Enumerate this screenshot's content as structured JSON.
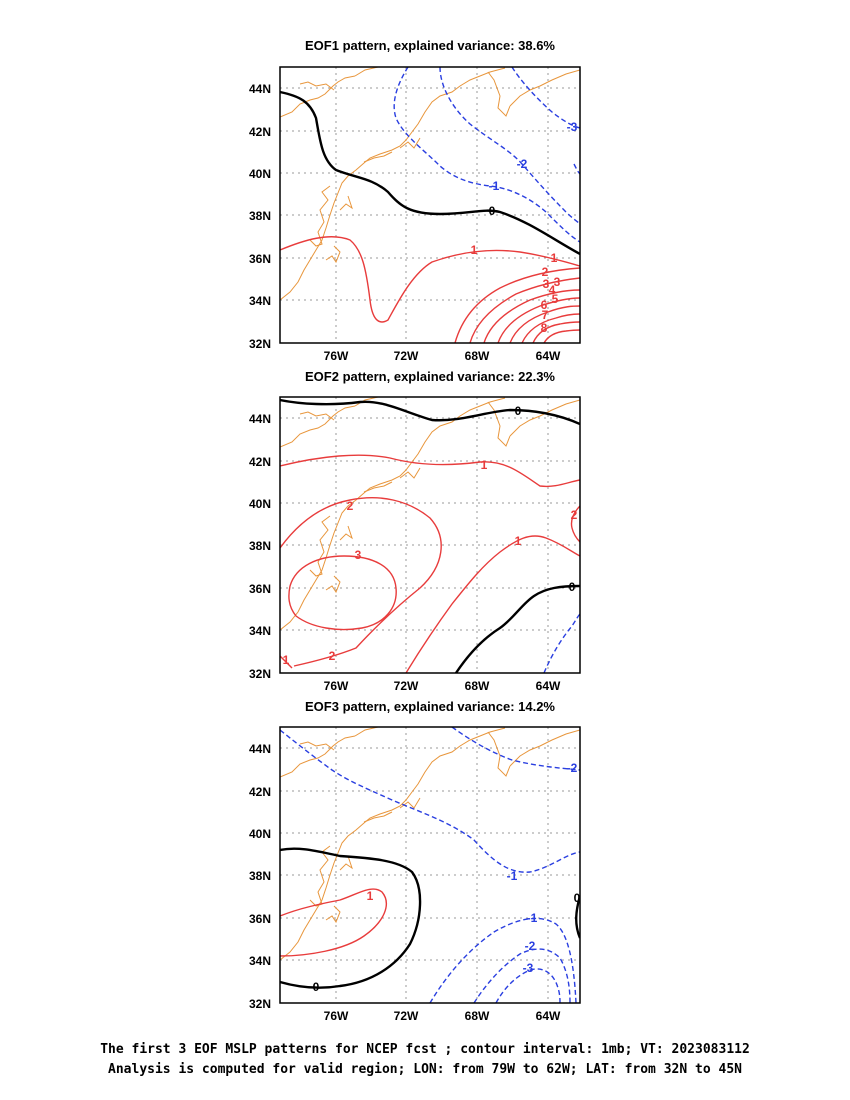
{
  "colors": {
    "positive": "#e83c3c",
    "negative": "#2a3fe0",
    "zero": "#000000",
    "coastline": "#e8963c",
    "grid": "#9a9a9a"
  },
  "axes": {
    "lon_ticks": [
      "76W",
      "72W",
      "68W",
      "64W"
    ],
    "lat_ticks": [
      "44N",
      "42N",
      "40N",
      "38N",
      "36N",
      "34N",
      "32N"
    ],
    "lon_range": [
      -79,
      -62
    ],
    "lat_range": [
      32,
      45
    ]
  },
  "panels": [
    {
      "id": "eof1",
      "title": "EOF1 pattern, explained variance: 38.6%",
      "contour_labels": [
        "0",
        "1",
        "1",
        "2",
        "3",
        "3",
        "4",
        "5",
        "6",
        "7",
        "8",
        "-1",
        "-2",
        "-3"
      ]
    },
    {
      "id": "eof2",
      "title": "EOF2 pattern, explained variance: 22.3%",
      "contour_labels": [
        "0",
        "0",
        "1",
        "1",
        "2",
        "2",
        "2",
        "3",
        "1"
      ]
    },
    {
      "id": "eof3",
      "title": "EOF3 pattern, explained variance: 14.2%",
      "contour_labels": [
        "0",
        "0",
        "1",
        "-1",
        "-1",
        "-2",
        "-3",
        "-2"
      ]
    }
  ],
  "caption": {
    "line1": "The first 3 EOF MSLP patterns for NCEP fcst ; contour interval: 1mb; VT: 2023083112",
    "line2": "Analysis is computed for valid region; LON: from 79W to 62W; LAT: from 32N to 45N"
  }
}
